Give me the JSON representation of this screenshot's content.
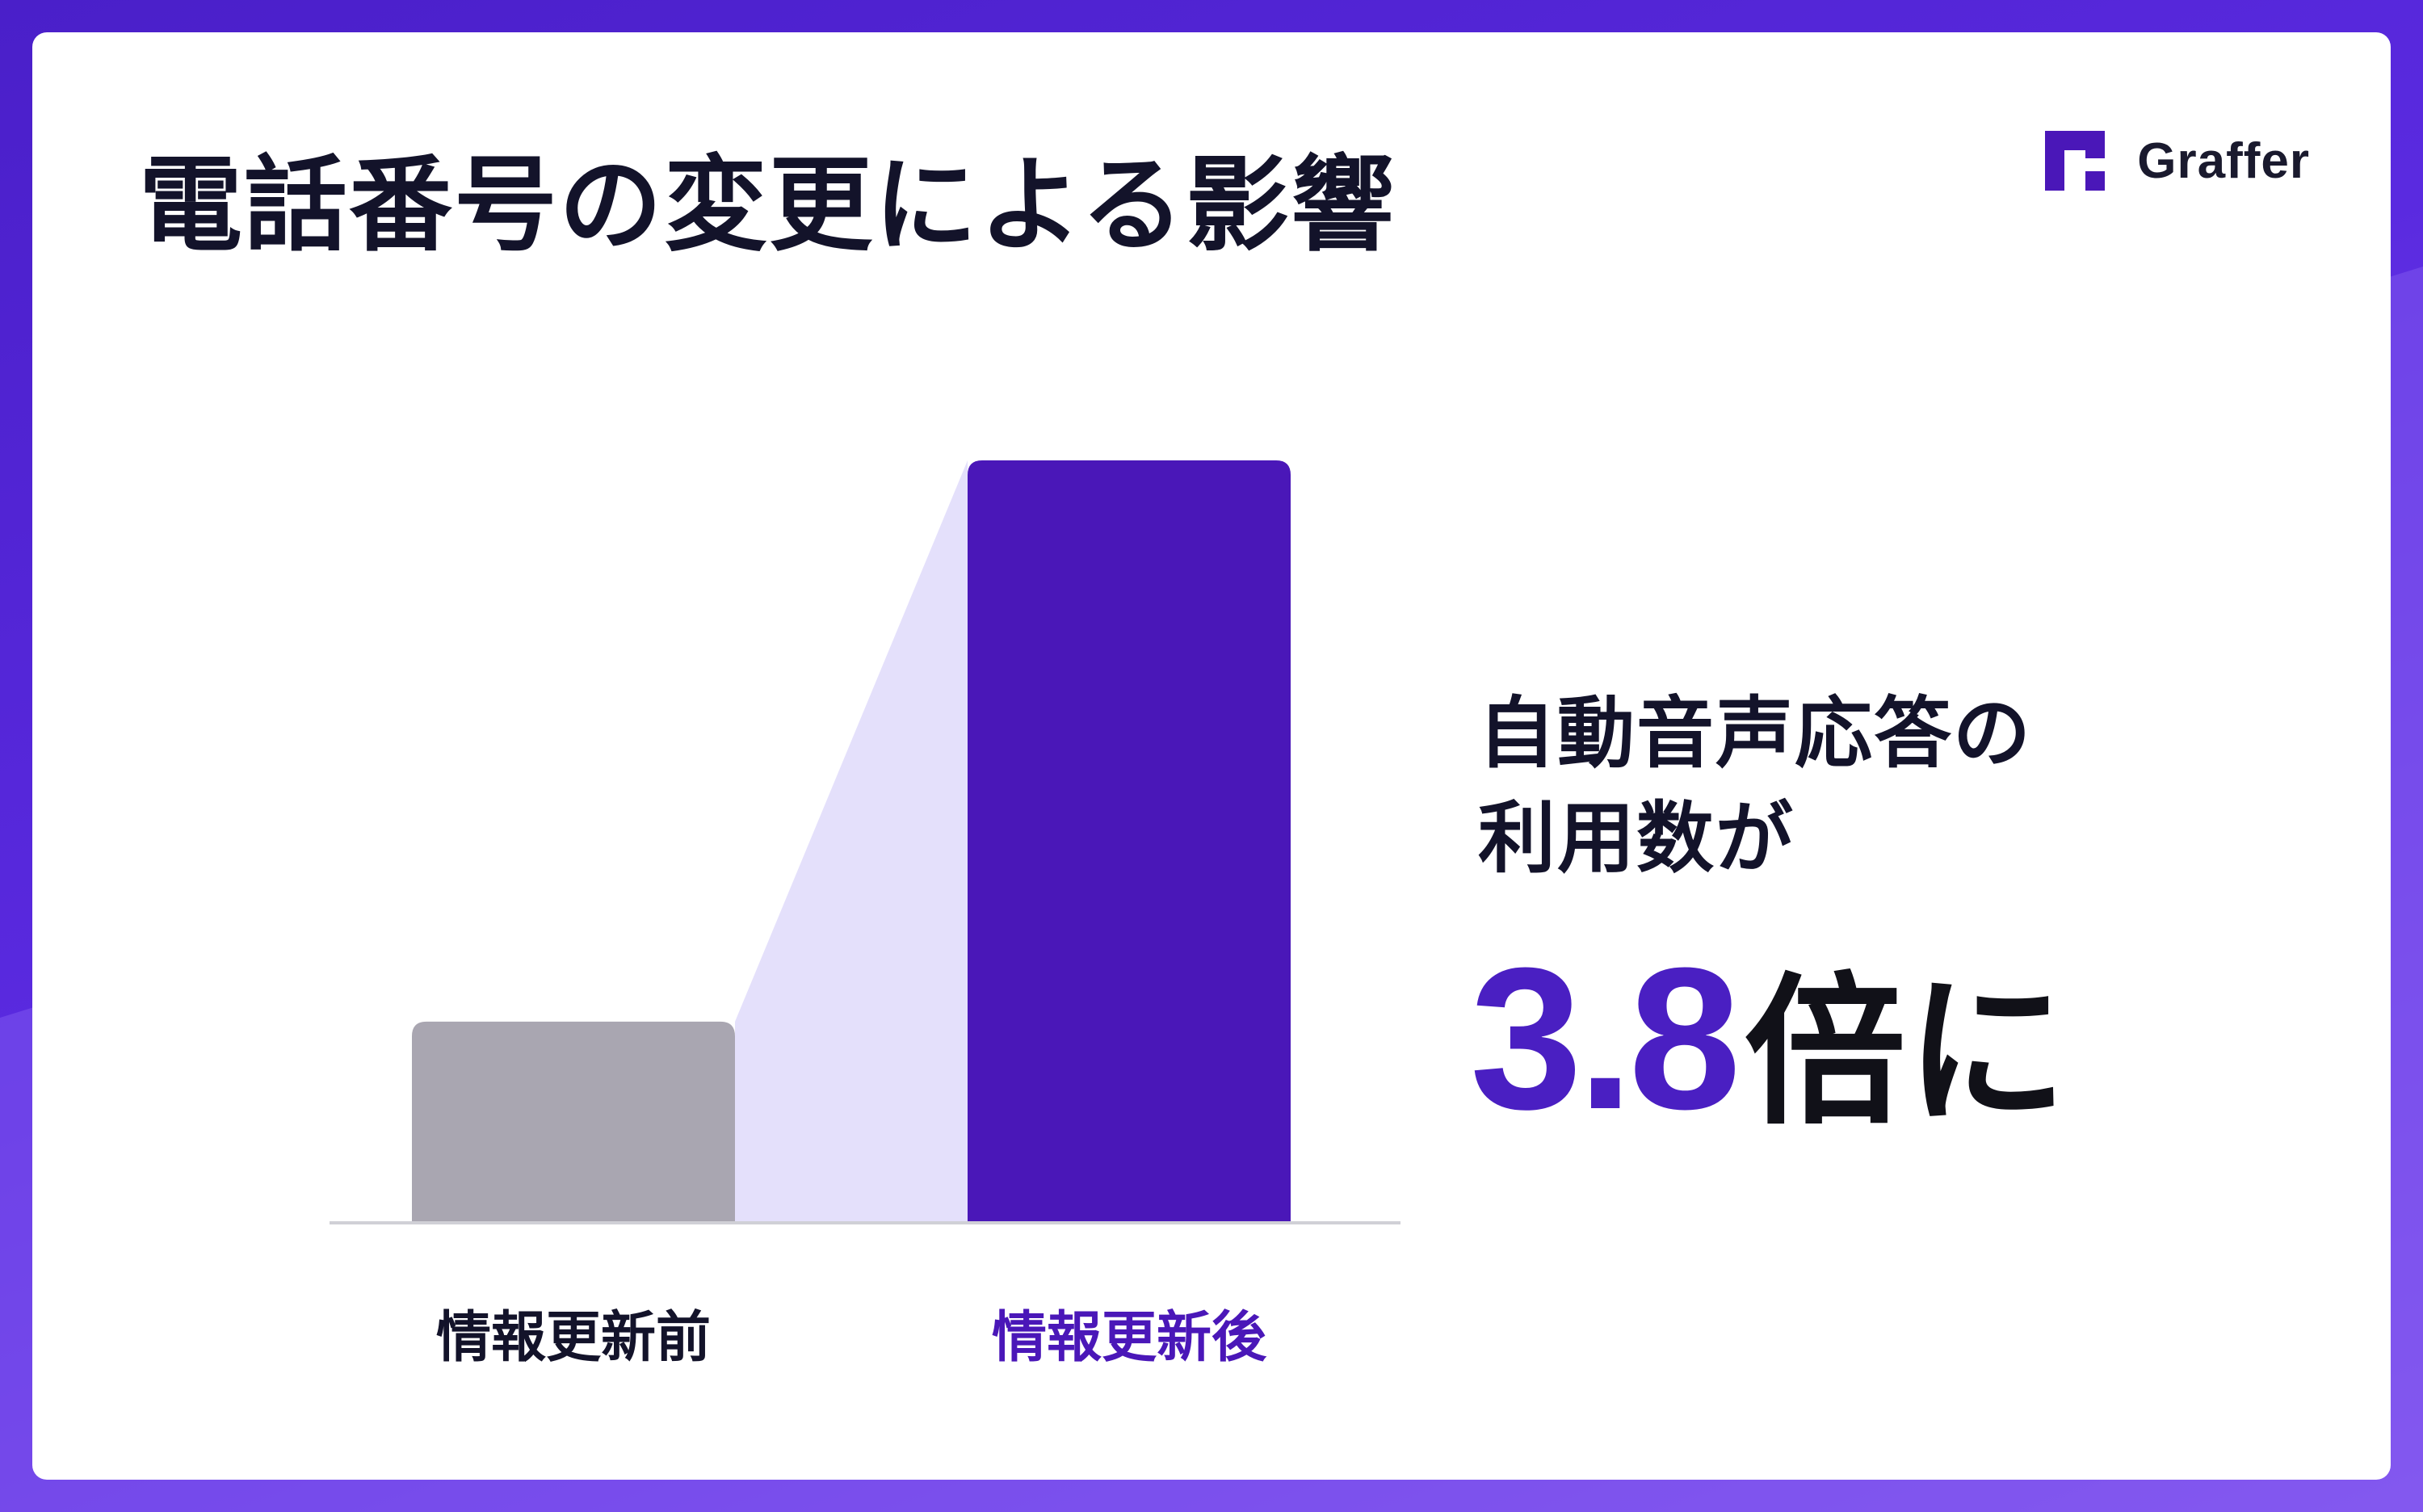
{
  "title": "電話番号の変更による影響",
  "logo": {
    "text": "Graffer",
    "icon": "graffer-logo-icon"
  },
  "colors": {
    "accent": "#4a17b8",
    "before_bar": "#a9a6b1",
    "connector_fill": "#e4e0fb",
    "axis": "#d0d0d6",
    "text_dark": "#13132a"
  },
  "chart_data": {
    "type": "bar",
    "categories": [
      "情報更新前",
      "情報更新後"
    ],
    "values": [
      1,
      3.8
    ],
    "ylim": [
      0,
      3.8
    ],
    "grid": false,
    "legend": "none"
  },
  "headline": {
    "line1": "自動音声応答の",
    "line2": "利用数が",
    "value": "3.8",
    "suffix": "倍に"
  }
}
